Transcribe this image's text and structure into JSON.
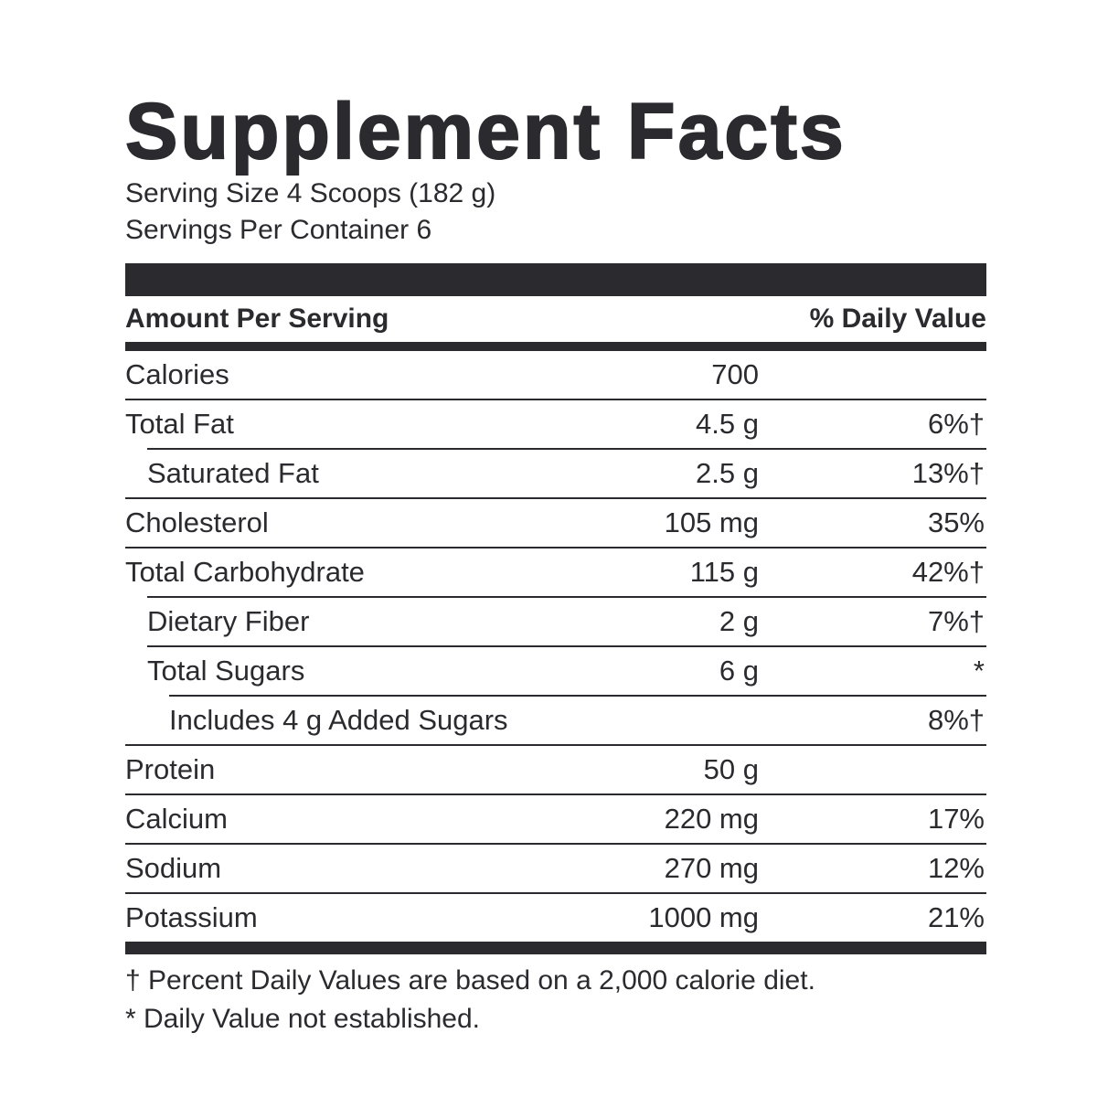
{
  "title": "Supplement Facts",
  "serving_size": "Serving Size 4 Scoops (182 g)",
  "servings_per_container": "Servings Per Container 6",
  "header": {
    "amount": "Amount Per Serving",
    "dv": "% Daily Value"
  },
  "rows": [
    {
      "name": "Calories",
      "amount": "700"
    },
    {
      "name": "Total Fat",
      "amount": "4.5 g",
      "dv": "6%†"
    },
    {
      "name": "Saturated Fat",
      "amount": "2.5 g",
      "dv": "13%†"
    },
    {
      "name": "Cholesterol",
      "amount": "105 mg",
      "dv": "35%"
    },
    {
      "name": "Total Carbohydrate",
      "amount": "115 g",
      "dv": "42%†"
    },
    {
      "name": "Dietary Fiber",
      "amount": "2 g",
      "dv": "7%†"
    },
    {
      "name": "Total Sugars",
      "amount": "6 g",
      "dv": "*"
    },
    {
      "name": "Includes 4 g Added Sugars",
      "dv": "8%†"
    },
    {
      "name": "Protein",
      "amount": "50 g"
    },
    {
      "name": "Calcium",
      "amount": "220 mg",
      "dv": "17%"
    },
    {
      "name": "Sodium",
      "amount": "270 mg",
      "dv": "12%"
    },
    {
      "name": "Potassium",
      "amount": "1000 mg",
      "dv": "21%"
    }
  ],
  "footnotes": [
    "† Percent Daily Values are based on a 2,000 calorie diet.",
    "* Daily Value not established."
  ]
}
